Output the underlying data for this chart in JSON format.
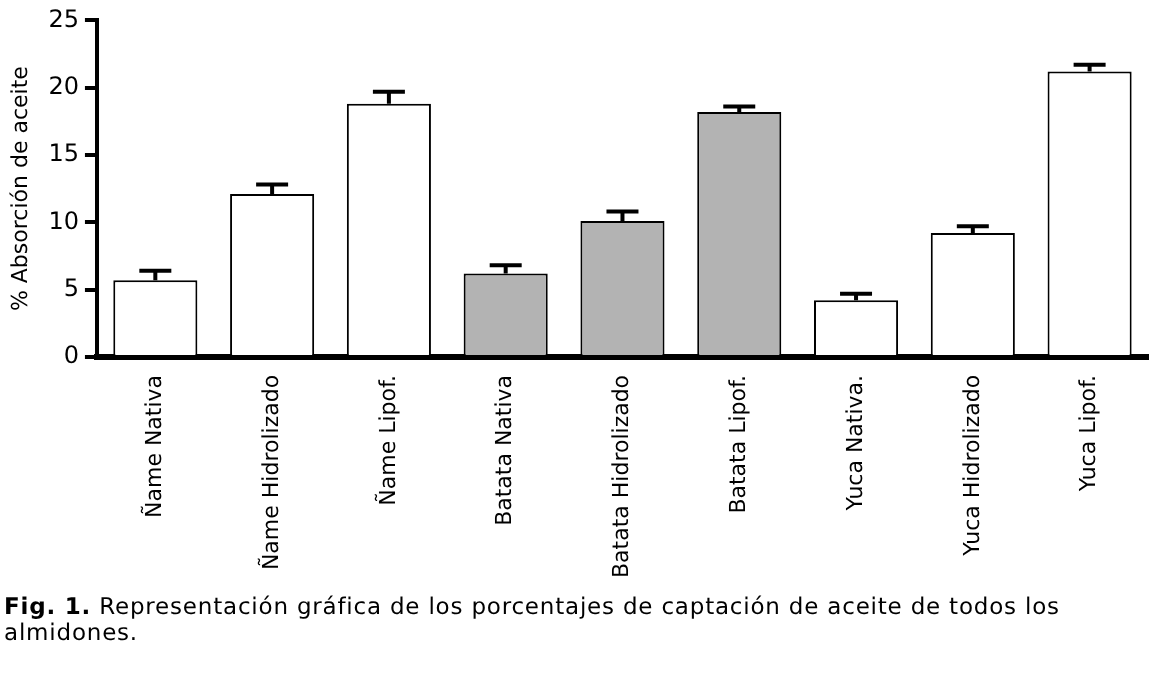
{
  "chart_data": {
    "type": "bar",
    "ylabel": "% Absorción de aceite",
    "categories": [
      "Ñame Nativa",
      "Ñame Hidrolizado",
      "Ñame Lipof.",
      "Batata Nativa",
      "Batata Hidrolizado",
      "Batata Lipof.",
      "Yuca Nativa.",
      "Yuca Hidrolizado",
      "Yuca Lipof."
    ],
    "values": [
      5.7,
      12.1,
      18.8,
      6.2,
      10.1,
      18.2,
      4.2,
      9.2,
      21.2
    ],
    "errors": [
      0.7,
      0.7,
      0.9,
      0.6,
      0.7,
      0.4,
      0.5,
      0.5,
      0.5
    ],
    "colors": [
      "#ffffff",
      "#ffffff",
      "#ffffff",
      "#b3b3b3",
      "#b3b3b3",
      "#b3b3b3",
      "#ffffff",
      "#ffffff",
      "#ffffff"
    ],
    "ylim": [
      0,
      25
    ],
    "yticks": [
      0,
      5,
      10,
      15,
      20,
      25
    ],
    "grid": false,
    "legend": false,
    "annotations": [
      "Fig. 1.",
      "Representación gráfica de los porcentajes de captación de aceite de todos los almidones."
    ]
  }
}
